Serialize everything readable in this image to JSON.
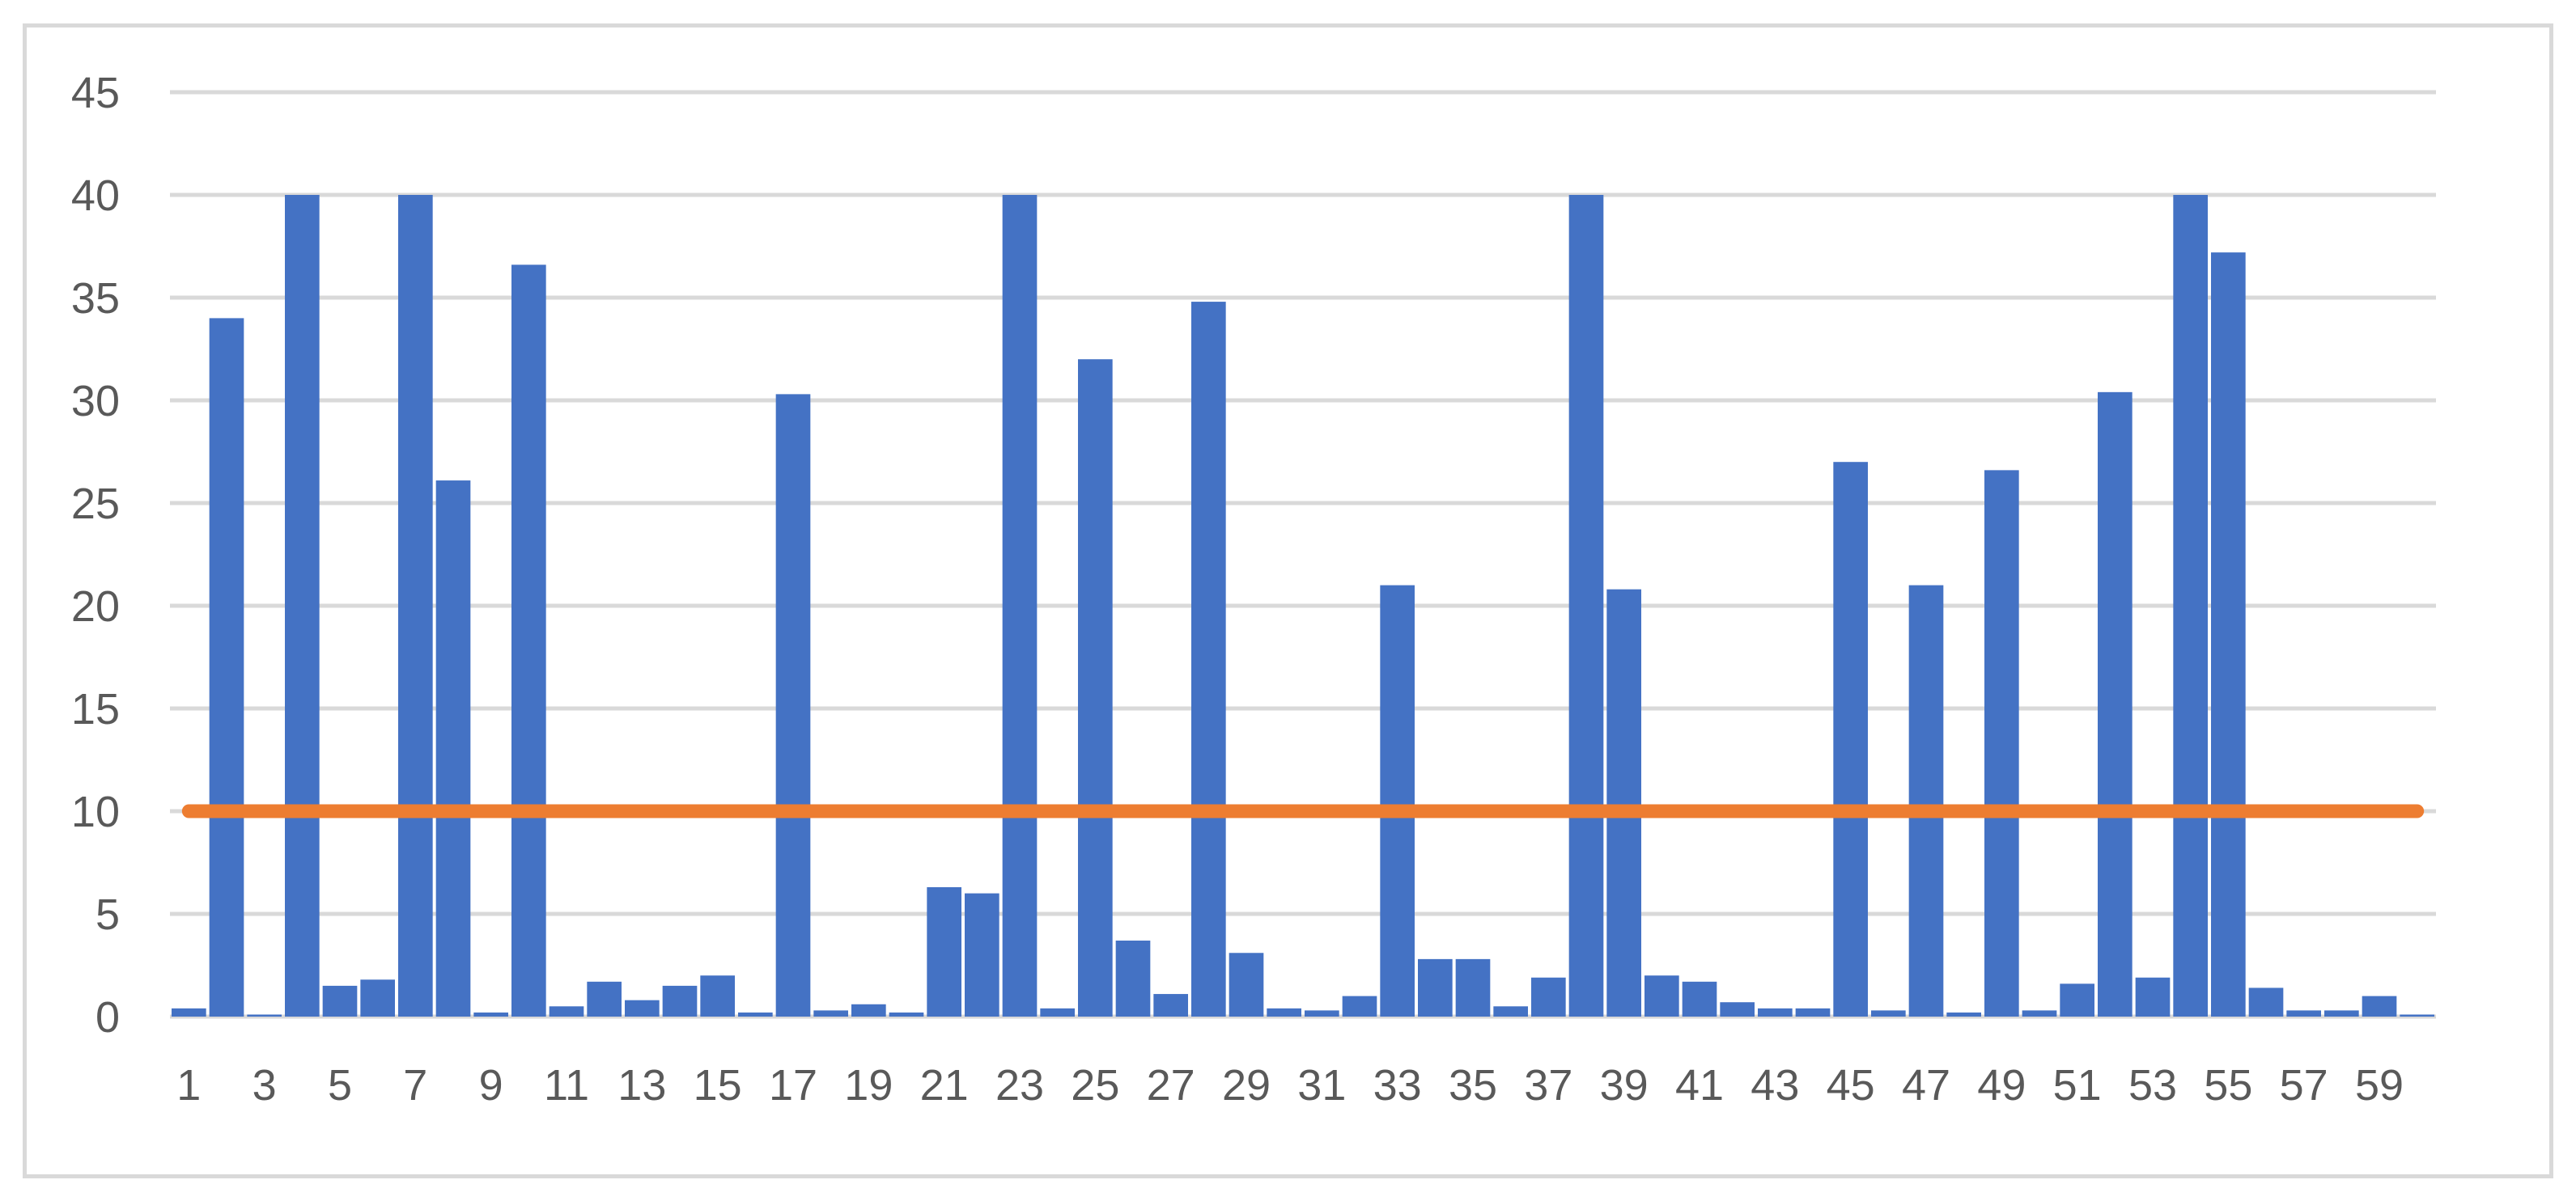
{
  "chart_data": {
    "type": "bar",
    "title": "",
    "xlabel": "",
    "ylabel": "",
    "ylim": [
      0,
      45
    ],
    "yticks": [
      0,
      5,
      10,
      15,
      20,
      25,
      30,
      35,
      40,
      45
    ],
    "grid": true,
    "legend": "none",
    "categories": [
      1,
      2,
      3,
      4,
      5,
      6,
      7,
      8,
      9,
      10,
      11,
      12,
      13,
      14,
      15,
      16,
      17,
      18,
      19,
      20,
      21,
      22,
      23,
      24,
      25,
      26,
      27,
      28,
      29,
      30,
      31,
      32,
      33,
      34,
      35,
      36,
      37,
      38,
      39,
      40,
      41,
      42,
      43,
      44,
      45,
      46,
      47,
      48,
      49,
      50,
      51,
      52,
      53,
      54,
      55,
      56,
      57,
      58,
      59,
      60
    ],
    "xtick_labels": [
      "1",
      "3",
      "5",
      "7",
      "9",
      "11",
      "13",
      "15",
      "17",
      "19",
      "21",
      "23",
      "25",
      "27",
      "29",
      "31",
      "33",
      "35",
      "37",
      "39",
      "41",
      "43",
      "45",
      "47",
      "49",
      "51",
      "53",
      "55",
      "57",
      "59"
    ],
    "series": [
      {
        "type": "bar",
        "color": "#4472c4",
        "values": [
          0.4,
          34,
          0.1,
          40,
          1.5,
          1.8,
          40,
          26.1,
          0.2,
          36.6,
          0.5,
          1.7,
          0.8,
          1.5,
          2.0,
          0.2,
          30.3,
          0.3,
          0.6,
          0.2,
          6.3,
          6.0,
          40,
          0.4,
          32.0,
          3.7,
          1.1,
          34.8,
          3.1,
          0.4,
          0.3,
          1.0,
          21.0,
          2.8,
          2.8,
          0.5,
          1.9,
          40,
          20.8,
          2.0,
          1.7,
          0.7,
          0.4,
          0.4,
          27.0,
          0.3,
          21.0,
          0.2,
          26.6,
          0.3,
          1.6,
          30.4,
          1.9,
          40,
          37.2,
          1.4,
          0.3,
          0.3,
          1.0,
          0.1
        ]
      },
      {
        "type": "line",
        "color": "#ed7d31",
        "values": [
          10,
          10,
          10,
          10,
          10,
          10,
          10,
          10,
          10,
          10,
          10,
          10,
          10,
          10,
          10,
          10,
          10,
          10,
          10,
          10,
          10,
          10,
          10,
          10,
          10,
          10,
          10,
          10,
          10,
          10,
          10,
          10,
          10,
          10,
          10,
          10,
          10,
          10,
          10,
          10,
          10,
          10,
          10,
          10,
          10,
          10,
          10,
          10,
          10,
          10,
          10,
          10,
          10,
          10,
          10,
          10,
          10,
          10,
          10,
          10
        ]
      }
    ],
    "colors": {
      "gridline": "#d9d9d9",
      "tick_text": "#595959",
      "border": "#d9d9d9"
    }
  }
}
